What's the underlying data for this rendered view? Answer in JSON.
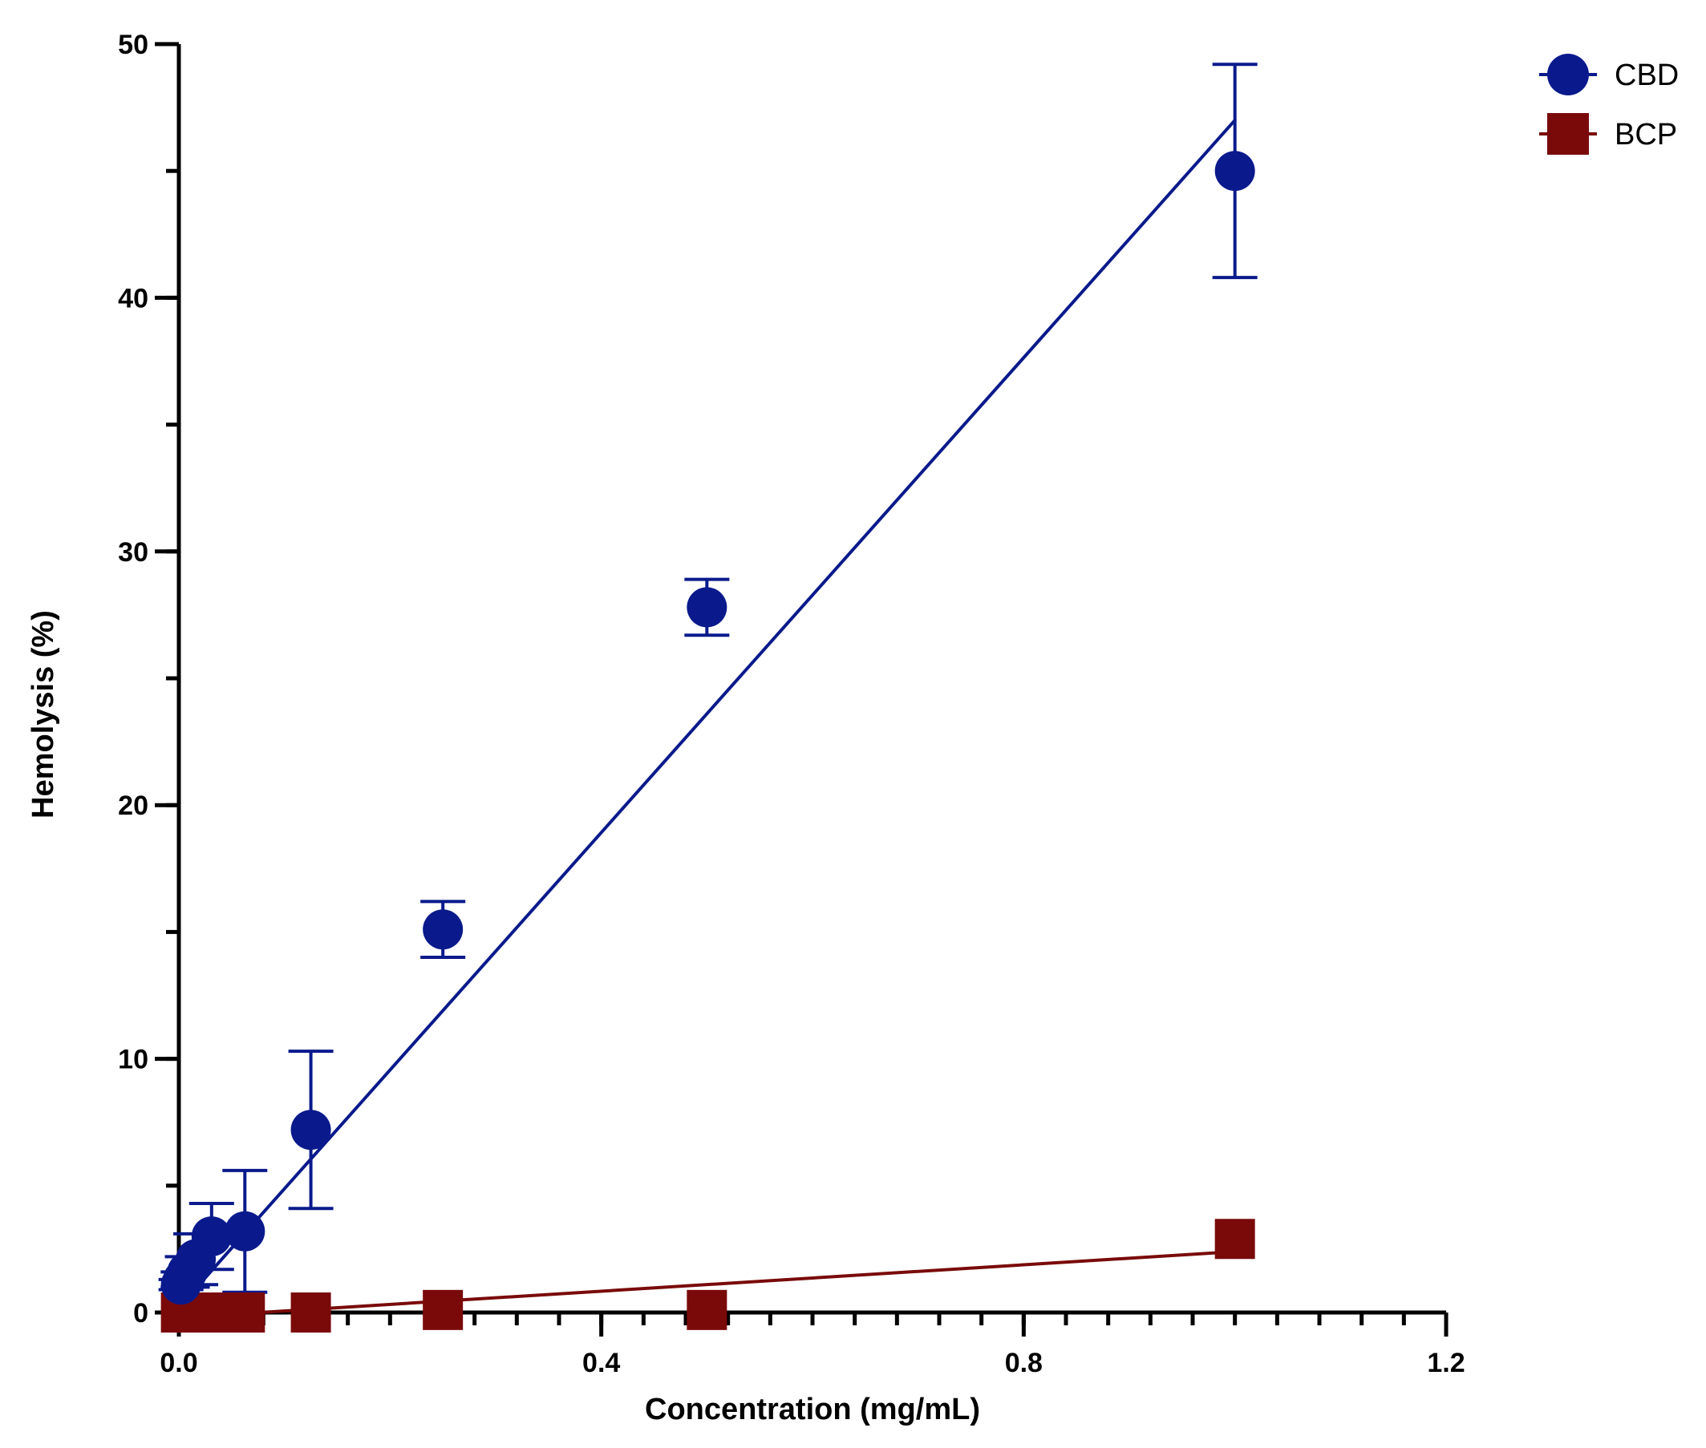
{
  "chart_data": {
    "type": "scatter",
    "title": "",
    "xlabel": "Concentration (mg/mL)",
    "ylabel": "Hemolysis (%)",
    "xlim": [
      0,
      1.2
    ],
    "ylim": [
      0,
      50
    ],
    "x_tick_labels": [
      "0.0",
      "0.4",
      "0.8",
      "1.2"
    ],
    "x_tick_values": [
      0,
      0.4,
      0.8,
      1.2
    ],
    "x_minor_step": 0.04,
    "y_tick_labels": [
      "0",
      "10",
      "20",
      "30",
      "40",
      "50"
    ],
    "y_tick_values": [
      0,
      10,
      20,
      30,
      40,
      50
    ],
    "y_minor_step": 5,
    "grid": false,
    "legend_position": "top-right",
    "series": [
      {
        "name": "CBD",
        "color": "#0a1a8c",
        "marker": "circle",
        "x": [
          0.002,
          0.004,
          0.008,
          0.016,
          0.031,
          0.0625,
          0.125,
          0.25,
          0.5,
          1.0
        ],
        "y": [
          1.1,
          1.3,
          1.6,
          2.1,
          3.0,
          3.2,
          7.2,
          15.1,
          27.8,
          45.0
        ],
        "err": [
          0.2,
          0.3,
          0.6,
          1.0,
          1.3,
          2.4,
          3.1,
          1.1,
          1.1,
          4.2
        ],
        "fit": {
          "x": [
            0,
            1.0
          ],
          "y": [
            0.2,
            47.0
          ]
        }
      },
      {
        "name": "BCP",
        "color": "#7a0a0a",
        "marker": "square",
        "x": [
          0.002,
          0.004,
          0.008,
          0.016,
          0.031,
          0.0625,
          0.125,
          0.25,
          0.5,
          1.0
        ],
        "y": [
          0.0,
          0.0,
          0.0,
          0.0,
          0.0,
          0.0,
          0.0,
          0.1,
          0.1,
          2.9
        ],
        "err": [
          0,
          0,
          0,
          0,
          0,
          0,
          0,
          0,
          0,
          0
        ],
        "fit": {
          "x": [
            0,
            1.0
          ],
          "y": [
            -0.2,
            2.4
          ]
        }
      }
    ]
  }
}
